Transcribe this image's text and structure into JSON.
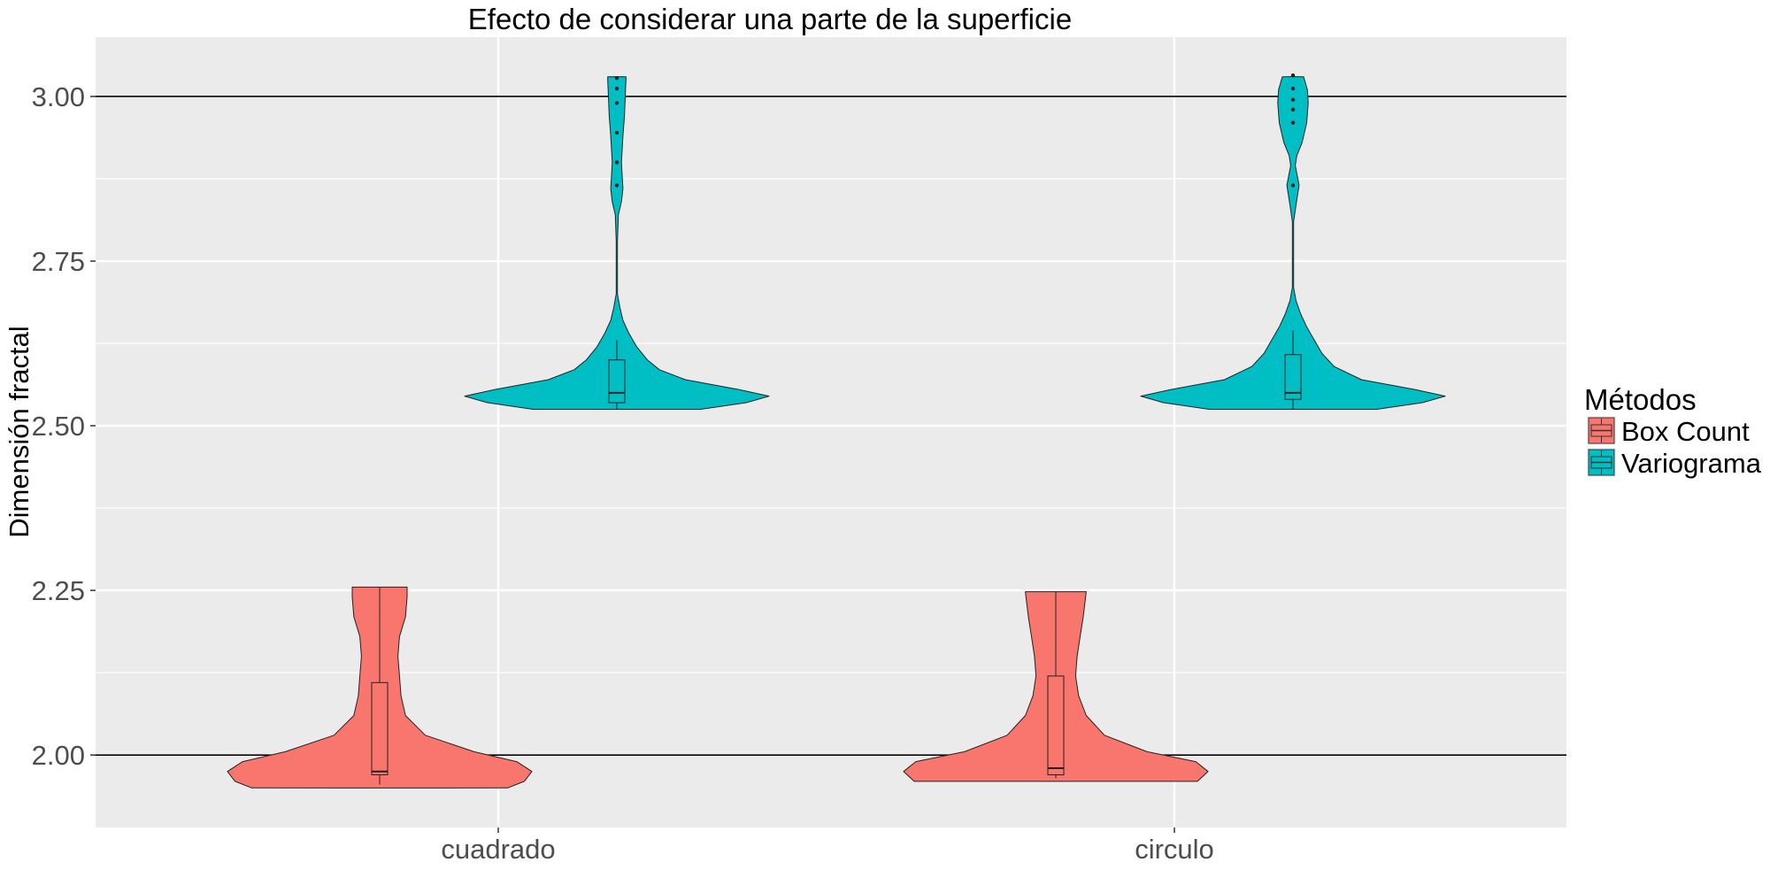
{
  "chart_data": {
    "type": "violin",
    "title": "Efecto de considerar una parte de la superficie",
    "xlabel": "",
    "ylabel": "Dimensión fractal",
    "categories": [
      "cuadrado",
      "circulo"
    ],
    "ylim": [
      1.89,
      3.09
    ],
    "yticks": [
      2.0,
      2.25,
      2.5,
      2.75,
      3.0
    ],
    "ytick_labels": [
      "2.00",
      "2.25",
      "2.50",
      "2.75",
      "3.00"
    ],
    "reference_lines": [
      2.0,
      3.0
    ],
    "grid": true,
    "legend": {
      "title": "Métodos",
      "placement": "right",
      "entries": [
        "Box Count",
        "Variograma"
      ]
    },
    "colors": {
      "Box Count": "#F8766D",
      "Variograma": "#00BFC4",
      "panel": "#EBEBEB",
      "gridline": "#ffffff"
    },
    "series": [
      {
        "name": "Box Count",
        "groups": [
          {
            "category": "cuadrado",
            "boxplot": {
              "lower_whisker": 1.955,
              "q1": 1.97,
              "median": 1.975,
              "q3": 2.11,
              "upper_whisker": 2.255
            },
            "density_profile": [
              [
                1.95,
                0.84
              ],
              [
                1.96,
                0.95
              ],
              [
                1.975,
                1.0
              ],
              [
                1.99,
                0.9
              ],
              [
                2.005,
                0.62
              ],
              [
                2.03,
                0.3
              ],
              [
                2.06,
                0.17
              ],
              [
                2.09,
                0.14
              ],
              [
                2.12,
                0.13
              ],
              [
                2.15,
                0.12
              ],
              [
                2.18,
                0.13
              ],
              [
                2.21,
                0.17
              ],
              [
                2.24,
                0.18
              ],
              [
                2.255,
                0.18
              ]
            ],
            "outliers": []
          },
          {
            "category": "circulo",
            "boxplot": {
              "lower_whisker": 1.965,
              "q1": 1.97,
              "median": 1.98,
              "q3": 2.12,
              "upper_whisker": 2.248
            },
            "density_profile": [
              [
                1.96,
                0.93
              ],
              [
                1.975,
                1.0
              ],
              [
                1.99,
                0.92
              ],
              [
                2.005,
                0.6
              ],
              [
                2.03,
                0.32
              ],
              [
                2.06,
                0.2
              ],
              [
                2.09,
                0.15
              ],
              [
                2.12,
                0.13
              ],
              [
                2.15,
                0.14
              ],
              [
                2.18,
                0.16
              ],
              [
                2.21,
                0.18
              ],
              [
                2.248,
                0.2
              ]
            ],
            "outliers": []
          }
        ]
      },
      {
        "name": "Variograma",
        "groups": [
          {
            "category": "cuadrado",
            "boxplot": {
              "lower_whisker": 2.525,
              "q1": 2.535,
              "median": 2.55,
              "q3": 2.6,
              "upper_whisker": 2.63
            },
            "density_profile": [
              [
                2.525,
                0.55
              ],
              [
                2.535,
                0.85
              ],
              [
                2.545,
                1.0
              ],
              [
                2.555,
                0.8
              ],
              [
                2.57,
                0.45
              ],
              [
                2.585,
                0.28
              ],
              [
                2.6,
                0.2
              ],
              [
                2.62,
                0.13
              ],
              [
                2.64,
                0.08
              ],
              [
                2.66,
                0.04
              ],
              [
                2.68,
                0.02
              ],
              [
                2.7,
                0.004
              ],
              [
                2.78,
                0.004
              ],
              [
                2.82,
                0.01
              ],
              [
                2.84,
                0.03
              ],
              [
                2.86,
                0.04
              ],
              [
                2.88,
                0.035
              ],
              [
                2.9,
                0.03
              ],
              [
                2.94,
                0.04
              ],
              [
                2.97,
                0.05
              ],
              [
                3.0,
                0.055
              ],
              [
                3.025,
                0.06
              ],
              [
                3.03,
                0.06
              ]
            ],
            "outliers": [
              2.865,
              2.9,
              2.945,
              2.99,
              3.012,
              3.028
            ]
          },
          {
            "category": "circulo",
            "boxplot": {
              "lower_whisker": 2.525,
              "q1": 2.54,
              "median": 2.55,
              "q3": 2.608,
              "upper_whisker": 2.645
            },
            "density_profile": [
              [
                2.525,
                0.55
              ],
              [
                2.535,
                0.85
              ],
              [
                2.545,
                1.0
              ],
              [
                2.555,
                0.8
              ],
              [
                2.57,
                0.45
              ],
              [
                2.59,
                0.27
              ],
              [
                2.61,
                0.19
              ],
              [
                2.63,
                0.14
              ],
              [
                2.65,
                0.09
              ],
              [
                2.67,
                0.05
              ],
              [
                2.69,
                0.02
              ],
              [
                2.71,
                0.004
              ],
              [
                2.81,
                0.004
              ],
              [
                2.835,
                0.02
              ],
              [
                2.865,
                0.04
              ],
              [
                2.895,
                0.015
              ],
              [
                2.91,
                0.025
              ],
              [
                2.93,
                0.06
              ],
              [
                2.96,
                0.09
              ],
              [
                2.99,
                0.1
              ],
              [
                3.01,
                0.095
              ],
              [
                3.03,
                0.07
              ]
            ],
            "outliers": [
              2.865,
              2.96,
              2.98,
              2.995,
              3.012,
              3.032
            ]
          }
        ]
      }
    ]
  }
}
